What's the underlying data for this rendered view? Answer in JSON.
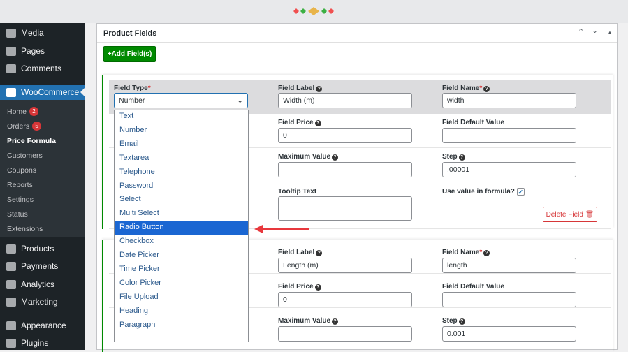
{
  "sidebar": {
    "top": [
      {
        "label": "Media",
        "icon": "media-icon"
      },
      {
        "label": "Pages",
        "icon": "pages-icon"
      },
      {
        "label": "Comments",
        "icon": "comments-icon"
      }
    ],
    "woocommerce": "WooCommerce",
    "sub": [
      {
        "label": "Home",
        "badge": "2"
      },
      {
        "label": "Orders",
        "badge": "5"
      },
      {
        "label": "Price Formula"
      },
      {
        "label": "Customers"
      },
      {
        "label": "Coupons"
      },
      {
        "label": "Reports"
      },
      {
        "label": "Settings"
      },
      {
        "label": "Status"
      },
      {
        "label": "Extensions"
      }
    ],
    "bottom": [
      {
        "label": "Products"
      },
      {
        "label": "Payments"
      },
      {
        "label": "Analytics"
      },
      {
        "label": "Marketing"
      },
      {
        "label": "Appearance"
      },
      {
        "label": "Plugins"
      }
    ]
  },
  "panel": {
    "title": "Product Fields",
    "add_label": "+Add Field(s)"
  },
  "labels": {
    "field_type": "Field Type",
    "field_label": "Field Label",
    "field_name": "Field Name",
    "field_price": "Field Price",
    "default_value": "Field Default Value",
    "max_value": "Maximum Value",
    "step": "Step",
    "tooltip": "Tooltip Text",
    "use_in_formula": "Use value in formula?",
    "delete": "Delete Field"
  },
  "fields": [
    {
      "type": "Number",
      "label": "Width (m)",
      "name": "width",
      "price": "0",
      "default": "",
      "max": "",
      "step": ".00001",
      "tooltip": "",
      "use_in_formula": true
    },
    {
      "label": "Length (m)",
      "name": "length",
      "price": "0",
      "default": "",
      "max": "",
      "step": "0.001"
    }
  ],
  "dropdown": {
    "options": [
      "Text",
      "Number",
      "Email",
      "Textarea",
      "Telephone",
      "Password",
      "Select",
      "Multi Select",
      "Radio Button",
      "Checkbox",
      "Date Picker",
      "Time Picker",
      "Color Picker",
      "File Upload",
      "Heading",
      "Paragraph"
    ],
    "highlighted": "Radio Button"
  },
  "colors": {
    "accent": "#2271b1",
    "add_button": "#008a00",
    "highlight": "#1a66d2",
    "arrow": "#e8383d"
  }
}
